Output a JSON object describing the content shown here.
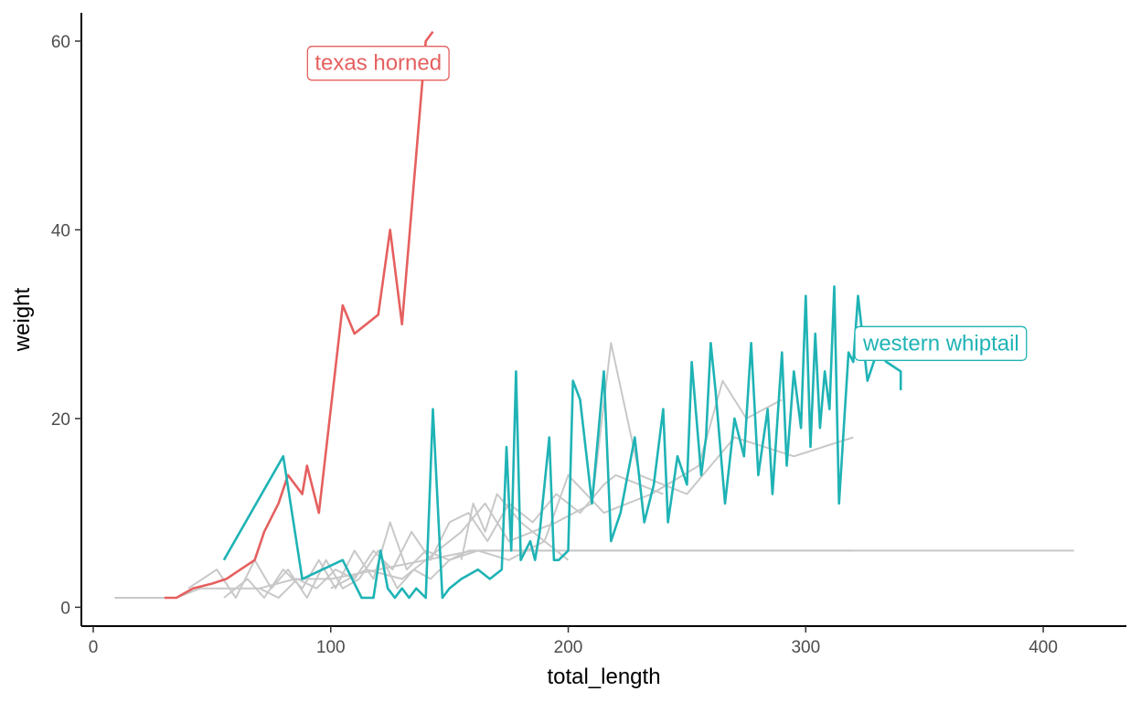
{
  "chart_data": {
    "type": "line",
    "title": "",
    "xlabel": "total_length",
    "ylabel": "weight",
    "xlim": [
      -5,
      435
    ],
    "ylim": [
      -2,
      63
    ],
    "x_ticks": [
      0,
      100,
      200,
      300,
      400
    ],
    "y_ticks": [
      0,
      20,
      40,
      60
    ],
    "grid": false,
    "legend": "none",
    "background_series_color": "#c8c8c8",
    "background_series": [
      {
        "x": [
          9,
          20,
          35,
          45,
          55,
          70,
          85,
          100,
          120,
          140,
          160,
          200,
          260,
          320
        ],
        "y": [
          1,
          1,
          1,
          2,
          2,
          2,
          3,
          3,
          4,
          5,
          6,
          6,
          6,
          6
        ]
      },
      {
        "x": [
          40,
          52,
          60,
          68,
          75,
          82,
          90,
          98,
          105,
          112,
          120,
          128,
          135,
          142,
          150,
          158,
          170,
          185,
          200,
          220,
          240,
          260,
          290,
          320,
          360,
          413
        ],
        "y": [
          2,
          4,
          1,
          5,
          2,
          4,
          1,
          5,
          2,
          3,
          6,
          2,
          4,
          3,
          5,
          6,
          6,
          6,
          6,
          6,
          6,
          6,
          6,
          6,
          6,
          6
        ]
      },
      {
        "x": [
          55,
          65,
          72,
          80,
          88,
          95,
          102,
          110,
          118,
          125,
          132,
          140,
          150,
          162,
          175,
          190,
          200
        ],
        "y": [
          1,
          3,
          1,
          4,
          2,
          5,
          2,
          6,
          3,
          9,
          4,
          6,
          5,
          6,
          5,
          7,
          5
        ]
      },
      {
        "x": [
          70,
          78,
          86,
          94,
          102,
          110,
          118,
          126,
          134,
          142,
          150,
          158,
          166,
          175,
          185,
          195,
          205,
          215,
          220,
          230,
          240
        ],
        "y": [
          2,
          1,
          3,
          2,
          4,
          3,
          6,
          4,
          8,
          5,
          9,
          10,
          7,
          11,
          9,
          12,
          10,
          13,
          14,
          13,
          12
        ]
      },
      {
        "x": [
          100,
          115,
          130,
          145,
          155,
          165,
          175,
          195,
          210,
          218,
          230,
          250,
          270,
          295,
          320
        ],
        "y": [
          2,
          4,
          3,
          6,
          8,
          11,
          7,
          9,
          11,
          28,
          14,
          12,
          18,
          16,
          18
        ]
      },
      {
        "x": [
          155,
          160,
          165,
          170,
          180,
          190,
          200,
          215,
          235,
          255,
          265,
          275,
          290
        ],
        "y": [
          5,
          11,
          8,
          12,
          9,
          7,
          14,
          10,
          12,
          15,
          24,
          20,
          22
        ]
      }
    ],
    "series": [
      {
        "name": "texas horned",
        "color": "#e5605f",
        "x": [
          30,
          35,
          42,
          50,
          56,
          62,
          68,
          72,
          78,
          82,
          88,
          90,
          95,
          105,
          110,
          120,
          125,
          130,
          140,
          143
        ],
        "y": [
          1,
          1,
          2,
          2.5,
          3,
          4,
          5,
          8,
          11,
          14,
          12,
          15,
          10,
          32,
          29,
          31,
          40,
          30,
          60,
          61
        ]
      },
      {
        "name": "western whiptail",
        "color": "#1fb3b5",
        "x": [
          55,
          80,
          88,
          105,
          113,
          118,
          121,
          124,
          127,
          130,
          133,
          136,
          140,
          143,
          147,
          150,
          155,
          162,
          167,
          172,
          174,
          176,
          178,
          180,
          184,
          186,
          188,
          192,
          194,
          196,
          200,
          202,
          205,
          210,
          215,
          218,
          222,
          225,
          228,
          232,
          236,
          240,
          242,
          246,
          250,
          252,
          256,
          258,
          260,
          262,
          266,
          270,
          274,
          277,
          280,
          284,
          286,
          290,
          292,
          295,
          298,
          300,
          302,
          304,
          306,
          308,
          310,
          312,
          314,
          318,
          320,
          322,
          326,
          330,
          334,
          340,
          340
        ],
        "y": [
          5,
          16,
          3,
          5,
          1,
          1,
          6,
          2,
          1,
          2,
          1,
          2,
          1,
          21,
          1,
          2,
          3,
          4,
          3,
          4,
          17,
          6,
          25,
          5,
          7,
          5,
          8,
          18,
          5,
          5,
          6,
          24,
          22,
          11,
          25,
          7,
          10,
          14,
          18,
          9,
          13,
          21,
          9,
          16,
          13,
          26,
          14,
          18,
          28,
          23,
          11,
          20,
          16,
          28,
          14,
          21,
          12,
          27,
          15,
          25,
          19,
          33,
          17,
          29,
          19,
          25,
          21,
          34,
          11,
          27,
          26,
          33,
          24,
          27,
          26,
          25,
          23
        ]
      }
    ],
    "annotations": [
      {
        "text": "texas horned",
        "x": 120,
        "y": 57.7,
        "color": "#e5605f"
      },
      {
        "text": "western whiptail",
        "x": 357,
        "y": 28,
        "color": "#1fb3b5"
      }
    ]
  }
}
